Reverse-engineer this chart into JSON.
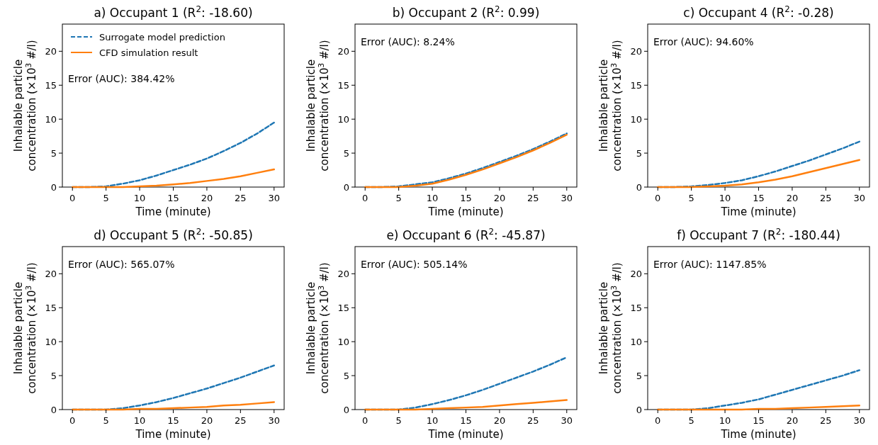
{
  "chart_data": [
    {
      "type": "line",
      "title": "a) Occupant 1 (R$^{2}$: -18.60)",
      "xlabel": "Time (minute)",
      "ylabel": "Inhalable particle\nconcentration (×10$^{3}$ #/l)",
      "x": [
        0,
        2.5,
        5,
        7.5,
        10,
        12.5,
        15,
        17.5,
        20,
        22.5,
        25,
        27.5,
        30
      ],
      "xlim": [
        -1.5,
        31.5
      ],
      "xticks": [
        0,
        5,
        10,
        15,
        20,
        25,
        30
      ],
      "ylim": [
        0,
        24
      ],
      "yticks": [
        0,
        5,
        10,
        15,
        20
      ],
      "legend": "top left",
      "annotations": [
        "Error (AUC): 384.42%"
      ],
      "series": [
        {
          "name": "Surrogate model prediction",
          "color": "#1f77b4",
          "line_style": "dashed",
          "values": [
            0,
            0,
            0.1,
            0.5,
            1.0,
            1.7,
            2.5,
            3.3,
            4.2,
            5.3,
            6.5,
            7.9,
            9.5
          ]
        },
        {
          "name": "CFD simulation result",
          "color": "#ff7f0e",
          "line_style": "solid",
          "values": [
            0,
            0,
            0,
            0,
            0.1,
            0.2,
            0.4,
            0.6,
            0.9,
            1.2,
            1.6,
            2.1,
            2.6
          ]
        }
      ]
    },
    {
      "type": "line",
      "title": "b) Occupant 2 (R$^{2}$: 0.99)",
      "xlabel": "Time (minute)",
      "ylabel": "Inhalable particle\nconcentration (×10$^{3}$ #/l)",
      "x": [
        0,
        2.5,
        5,
        7.5,
        10,
        12.5,
        15,
        17.5,
        20,
        22.5,
        25,
        27.5,
        30
      ],
      "xlim": [
        -1.5,
        31.5
      ],
      "xticks": [
        0,
        5,
        10,
        15,
        20,
        25,
        30
      ],
      "ylim": [
        0,
        24
      ],
      "yticks": [
        0,
        5,
        10,
        15,
        20
      ],
      "annotations": [
        "Error (AUC): 8.24%"
      ],
      "series": [
        {
          "color": "#1f77b4",
          "line_style": "dashed",
          "values": [
            0,
            0,
            0.1,
            0.4,
            0.7,
            1.3,
            2.0,
            2.8,
            3.7,
            4.6,
            5.6,
            6.7,
            7.9
          ]
        },
        {
          "color": "#ff7f0e",
          "line_style": "solid",
          "values": [
            0,
            0,
            0,
            0.2,
            0.5,
            1.1,
            1.8,
            2.6,
            3.5,
            4.4,
            5.4,
            6.5,
            7.7
          ]
        }
      ]
    },
    {
      "type": "line",
      "title": "c) Occupant 4 (R$^{2}$: -0.28)",
      "xlabel": "Time (minute)",
      "ylabel": "Inhalable particle\nconcentration (×10$^{3}$ #/l)",
      "x": [
        0,
        2.5,
        5,
        7.5,
        10,
        12.5,
        15,
        17.5,
        20,
        22.5,
        25,
        27.5,
        30
      ],
      "xlim": [
        -1.5,
        31.5
      ],
      "xticks": [
        0,
        5,
        10,
        15,
        20,
        25,
        30
      ],
      "ylim": [
        0,
        24
      ],
      "yticks": [
        0,
        5,
        10,
        15,
        20
      ],
      "annotations": [
        "Error (AUC): 94.60%"
      ],
      "series": [
        {
          "color": "#1f77b4",
          "line_style": "dashed",
          "values": [
            0,
            0,
            0.1,
            0.3,
            0.6,
            1.0,
            1.6,
            2.3,
            3.1,
            3.9,
            4.8,
            5.7,
            6.7
          ]
        },
        {
          "color": "#ff7f0e",
          "line_style": "solid",
          "values": [
            0,
            0,
            0,
            0.1,
            0.2,
            0.4,
            0.7,
            1.1,
            1.6,
            2.2,
            2.8,
            3.4,
            4.0
          ]
        }
      ]
    },
    {
      "type": "line",
      "title": "d) Occupant 5 (R$^{2}$: -50.85)",
      "xlabel": "Time (minute)",
      "ylabel": "Inhalable particle\nconcentration (×10$^{3}$ #/l)",
      "x": [
        0,
        2.5,
        5,
        7.5,
        10,
        12.5,
        15,
        17.5,
        20,
        22.5,
        25,
        27.5,
        30
      ],
      "xlim": [
        -1.5,
        31.5
      ],
      "xticks": [
        0,
        5,
        10,
        15,
        20,
        25,
        30
      ],
      "ylim": [
        0,
        24
      ],
      "yticks": [
        0,
        5,
        10,
        15,
        20
      ],
      "annotations": [
        "Error (AUC): 565.07%"
      ],
      "series": [
        {
          "color": "#1f77b4",
          "line_style": "dashed",
          "values": [
            0,
            0,
            0,
            0.2,
            0.6,
            1.1,
            1.7,
            2.4,
            3.1,
            3.9,
            4.7,
            5.6,
            6.5
          ]
        },
        {
          "color": "#ff7f0e",
          "line_style": "solid",
          "values": [
            0,
            0,
            0,
            0,
            0.1,
            0.1,
            0.2,
            0.3,
            0.4,
            0.6,
            0.7,
            0.9,
            1.1
          ]
        }
      ]
    },
    {
      "type": "line",
      "title": "e) Occupant 6 (R$^{2}$: -45.87)",
      "xlabel": "Time (minute)",
      "ylabel": "Inhalable particle\nconcentration (×10$^{3}$ #/l)",
      "x": [
        0,
        2.5,
        5,
        7.5,
        10,
        12.5,
        15,
        17.5,
        20,
        22.5,
        25,
        27.5,
        30
      ],
      "xlim": [
        -1.5,
        31.5
      ],
      "xticks": [
        0,
        5,
        10,
        15,
        20,
        25,
        30
      ],
      "ylim": [
        0,
        24
      ],
      "yticks": [
        0,
        5,
        10,
        15,
        20
      ],
      "annotations": [
        "Error (AUC): 505.14%"
      ],
      "series": [
        {
          "color": "#1f77b4",
          "line_style": "dashed",
          "values": [
            0,
            0,
            0,
            0.3,
            0.8,
            1.4,
            2.1,
            2.9,
            3.8,
            4.7,
            5.6,
            6.6,
            7.7
          ]
        },
        {
          "color": "#ff7f0e",
          "line_style": "solid",
          "values": [
            0,
            0,
            0,
            0,
            0.1,
            0.2,
            0.3,
            0.4,
            0.6,
            0.8,
            1.0,
            1.2,
            1.4
          ]
        }
      ]
    },
    {
      "type": "line",
      "title": "f) Occupant 7 (R$^{2}$: -180.44)",
      "xlabel": "Time (minute)",
      "ylabel": "Inhalable particle\nconcentration (×10$^{3}$ #/l)",
      "x": [
        0,
        2.5,
        5,
        7.5,
        10,
        12.5,
        15,
        17.5,
        20,
        22.5,
        25,
        27.5,
        30
      ],
      "xlim": [
        -1.5,
        31.5
      ],
      "xticks": [
        0,
        5,
        10,
        15,
        20,
        25,
        30
      ],
      "ylim": [
        0,
        24
      ],
      "yticks": [
        0,
        5,
        10,
        15,
        20
      ],
      "annotations": [
        "Error (AUC): 1147.85%"
      ],
      "series": [
        {
          "color": "#1f77b4",
          "line_style": "dashed",
          "values": [
            0,
            0,
            0,
            0.2,
            0.6,
            1.0,
            1.5,
            2.2,
            2.9,
            3.6,
            4.3,
            5.0,
            5.8
          ]
        },
        {
          "color": "#ff7f0e",
          "line_style": "solid",
          "values": [
            0,
            0,
            0,
            0,
            0,
            0,
            0.1,
            0.1,
            0.2,
            0.3,
            0.4,
            0.5,
            0.6
          ]
        }
      ]
    }
  ]
}
